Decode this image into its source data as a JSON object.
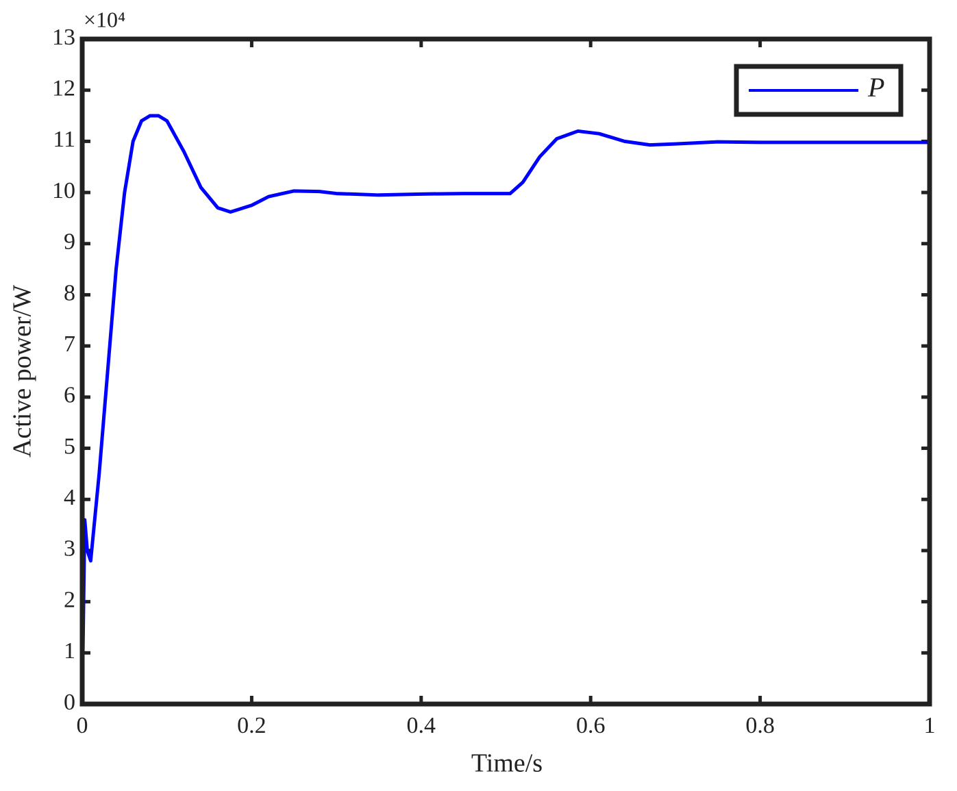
{
  "chart_data": {
    "type": "line",
    "x_label": "Time/s",
    "y_label": "Active power/W",
    "y_multiplier": "×10⁴",
    "x": [
      0,
      0.003,
      0.006,
      0.01,
      0.02,
      0.03,
      0.04,
      0.05,
      0.06,
      0.07,
      0.08,
      0.09,
      0.1,
      0.12,
      0.14,
      0.16,
      0.175,
      0.2,
      0.22,
      0.25,
      0.28,
      0.3,
      0.35,
      0.4,
      0.45,
      0.505,
      0.52,
      0.54,
      0.56,
      0.585,
      0.61,
      0.64,
      0.67,
      0.7,
      0.75,
      0.8,
      0.9,
      1.0
    ],
    "series": [
      {
        "name": "P",
        "color": "#0000ff",
        "values": [
          0,
          3.6,
          3.0,
          2.8,
          4.5,
          6.5,
          8.5,
          10.0,
          11.0,
          11.4,
          11.5,
          11.5,
          11.4,
          10.8,
          10.1,
          9.7,
          9.62,
          9.75,
          9.92,
          10.03,
          10.02,
          9.98,
          9.95,
          9.97,
          9.98,
          9.98,
          10.2,
          10.7,
          11.05,
          11.2,
          11.15,
          11.0,
          10.93,
          10.95,
          10.99,
          10.98,
          10.98,
          10.98
        ]
      }
    ],
    "xlim": [
      0,
      1
    ],
    "xticks": [
      0,
      0.2,
      0.4,
      0.6,
      0.8,
      1
    ],
    "ylim": [
      0,
      13
    ],
    "yticks": [
      0,
      1,
      2,
      3,
      4,
      5,
      6,
      7,
      8,
      9,
      10,
      11,
      12,
      13
    ],
    "grid": false,
    "legend": "northeast"
  }
}
